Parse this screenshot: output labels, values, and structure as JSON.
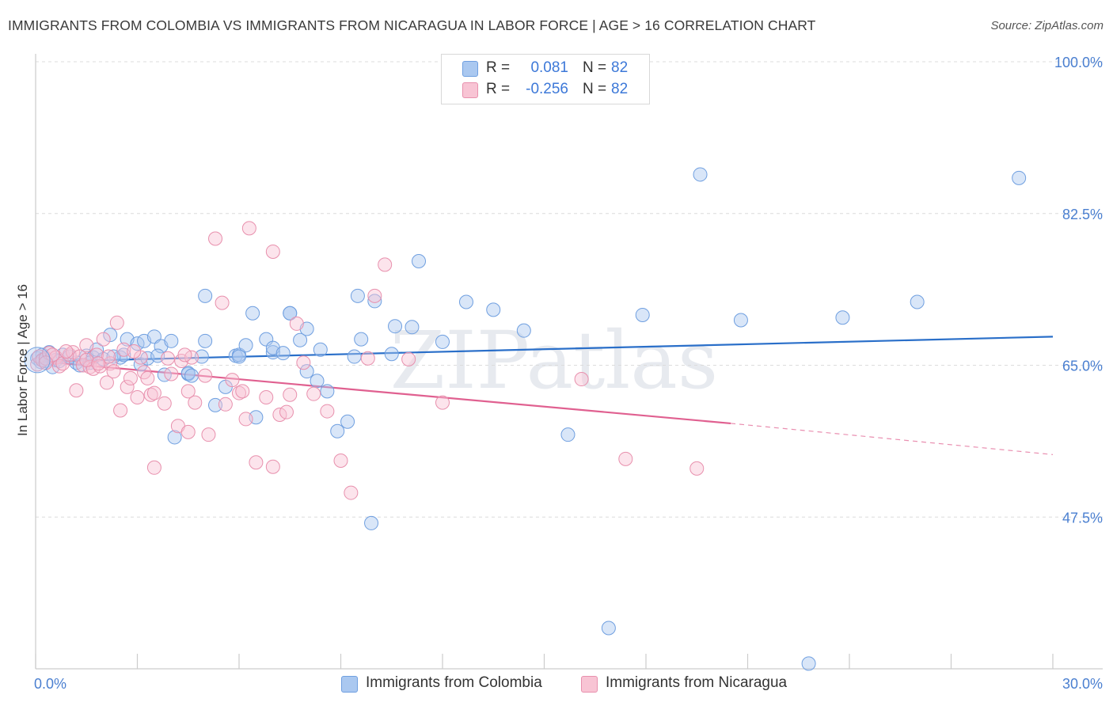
{
  "title": "IMMIGRANTS FROM COLOMBIA VS IMMIGRANTS FROM NICARAGUA IN LABOR FORCE | AGE > 16 CORRELATION CHART",
  "source": "Source: ZipAtlas.com",
  "watermark": "ZIPatlas",
  "legend": {
    "rows": [
      {
        "r_label": "R =",
        "r_value": "0.081",
        "n_label": "N =",
        "n_value": "82",
        "color": "#aac8f0",
        "border": "#6f9fe0"
      },
      {
        "r_label": "R =",
        "r_value": "-0.256",
        "n_label": "N =",
        "n_value": "82",
        "color": "#f8c4d4",
        "border": "#e890ad"
      }
    ]
  },
  "bottom_legend": [
    {
      "label": "Immigrants from Colombia",
      "color": "#aac8f0",
      "border": "#6f9fe0"
    },
    {
      "label": "Immigrants from Nicaragua",
      "color": "#f8c4d4",
      "border": "#e890ad"
    }
  ],
  "chart_data": {
    "type": "scatter",
    "title": "IMMIGRANTS FROM COLOMBIA VS IMMIGRANTS FROM NICARAGUA IN LABOR FORCE | AGE > 16 CORRELATION CHART",
    "xlabel": "",
    "ylabel": "In Labor Force | Age > 16",
    "xlim": [
      0,
      30
    ],
    "ylim": [
      30,
      100
    ],
    "x_tick_labels": [
      "0.0%",
      "30.0%"
    ],
    "y_ticks": [
      47.5,
      65.0,
      82.5,
      100.0
    ],
    "y_tick_labels": [
      "47.5%",
      "65.0%",
      "82.5%",
      "100.0%"
    ],
    "grid": true,
    "series": [
      {
        "name": "Immigrants from Colombia",
        "color": "#6f9fe0",
        "fill": "rgba(170,200,240,0.45)",
        "trend": {
          "x": [
            0,
            30
          ],
          "y": [
            65.4,
            68.3
          ],
          "color": "#2a6fc9"
        },
        "points": [
          [
            0.05,
            65.8
          ],
          [
            0.2,
            66.2
          ],
          [
            0.3,
            65.5
          ],
          [
            0.4,
            66.5
          ],
          [
            0.5,
            64.8
          ],
          [
            0.6,
            65.6
          ],
          [
            0.8,
            66.2
          ],
          [
            1.0,
            66.0
          ],
          [
            1.2,
            65.3
          ],
          [
            1.3,
            65.0
          ],
          [
            1.5,
            66.1
          ],
          [
            1.7,
            65.9
          ],
          [
            1.8,
            66.8
          ],
          [
            2.0,
            65.7
          ],
          [
            2.2,
            68.5
          ],
          [
            2.5,
            65.9
          ],
          [
            2.6,
            66.2
          ],
          [
            2.7,
            68.0
          ],
          [
            3.0,
            67.5
          ],
          [
            3.1,
            65.1
          ],
          [
            3.2,
            67.8
          ],
          [
            3.3,
            65.8
          ],
          [
            3.5,
            68.3
          ],
          [
            3.7,
            67.2
          ],
          [
            3.8,
            63.9
          ],
          [
            4.0,
            67.8
          ],
          [
            4.1,
            56.7
          ],
          [
            4.5,
            64.0
          ],
          [
            4.5,
            64.1
          ],
          [
            4.6,
            63.8
          ],
          [
            5.0,
            67.8
          ],
          [
            5.0,
            73.0
          ],
          [
            5.3,
            60.4
          ],
          [
            5.6,
            62.5
          ],
          [
            5.9,
            66.1
          ],
          [
            6.0,
            66.2
          ],
          [
            6.2,
            67.3
          ],
          [
            6.4,
            71.0
          ],
          [
            6.5,
            59.0
          ],
          [
            6.8,
            68.0
          ],
          [
            7.0,
            66.5
          ],
          [
            7.0,
            67.0
          ],
          [
            7.5,
            71.0
          ],
          [
            7.5,
            71.0
          ],
          [
            7.8,
            67.9
          ],
          [
            8.0,
            69.2
          ],
          [
            8.0,
            64.3
          ],
          [
            8.3,
            63.2
          ],
          [
            8.6,
            62.0
          ],
          [
            8.9,
            57.4
          ],
          [
            9.2,
            58.5
          ],
          [
            9.6,
            68.0
          ],
          [
            9.9,
            46.8
          ],
          [
            9.5,
            73.0
          ],
          [
            10.0,
            72.4
          ],
          [
            10.5,
            66.3
          ],
          [
            10.6,
            69.5
          ],
          [
            11.1,
            69.4
          ],
          [
            11.3,
            77.0
          ],
          [
            12.0,
            67.7
          ],
          [
            12.7,
            72.3
          ],
          [
            13.5,
            71.4
          ],
          [
            14.4,
            69.0
          ],
          [
            15.7,
            57.0
          ],
          [
            16.9,
            34.7
          ],
          [
            17.9,
            70.8
          ],
          [
            19.6,
            87.0
          ],
          [
            20.8,
            70.2
          ],
          [
            23.8,
            70.5
          ],
          [
            26.0,
            72.3
          ],
          [
            29.0,
            86.6
          ],
          [
            22.8,
            30.6
          ],
          [
            9.4,
            66.0
          ],
          [
            6.0,
            66.0
          ],
          [
            2.3,
            66.0
          ],
          [
            1.6,
            65.3
          ],
          [
            0.7,
            65.5
          ],
          [
            4.9,
            66.0
          ],
          [
            3.6,
            66.1
          ],
          [
            7.3,
            66.4
          ],
          [
            8.4,
            66.8
          ],
          [
            0.15,
            65.4
          ]
        ]
      },
      {
        "name": "Immigrants from Nicaragua",
        "color": "#e890ad",
        "fill": "rgba(248,196,212,0.45)",
        "trend": {
          "x": [
            0,
            20.5
          ],
          "y": [
            65.5,
            58.3
          ],
          "color": "#e06090"
        },
        "trend_dashed": {
          "x": [
            20.5,
            30
          ],
          "y": [
            58.3,
            54.7
          ]
        },
        "points": [
          [
            0.05,
            65.1
          ],
          [
            0.1,
            66.0
          ],
          [
            0.2,
            65.6
          ],
          [
            0.3,
            65.8
          ],
          [
            0.4,
            66.4
          ],
          [
            0.6,
            65.9
          ],
          [
            0.7,
            64.9
          ],
          [
            0.8,
            65.2
          ],
          [
            1.0,
            66.2
          ],
          [
            1.1,
            66.5
          ],
          [
            1.2,
            62.1
          ],
          [
            1.3,
            66.0
          ],
          [
            1.4,
            65.0
          ],
          [
            1.5,
            67.3
          ],
          [
            1.6,
            64.8
          ],
          [
            1.7,
            64.6
          ],
          [
            1.8,
            66.2
          ],
          [
            1.9,
            64.9
          ],
          [
            2.0,
            68.0
          ],
          [
            2.1,
            63.0
          ],
          [
            2.2,
            65.2
          ],
          [
            2.3,
            64.3
          ],
          [
            2.4,
            69.9
          ],
          [
            2.5,
            59.8
          ],
          [
            2.7,
            62.5
          ],
          [
            2.8,
            63.5
          ],
          [
            3.0,
            61.3
          ],
          [
            3.2,
            64.2
          ],
          [
            3.3,
            63.5
          ],
          [
            3.4,
            61.6
          ],
          [
            3.5,
            61.8
          ],
          [
            3.5,
            53.2
          ],
          [
            3.8,
            60.6
          ],
          [
            4.0,
            64.0
          ],
          [
            4.2,
            58.0
          ],
          [
            4.3,
            65.5
          ],
          [
            4.5,
            62.0
          ],
          [
            4.5,
            57.3
          ],
          [
            4.7,
            60.7
          ],
          [
            5.0,
            63.8
          ],
          [
            5.1,
            57.0
          ],
          [
            5.3,
            79.6
          ],
          [
            5.5,
            72.2
          ],
          [
            5.6,
            60.5
          ],
          [
            5.8,
            63.3
          ],
          [
            6.0,
            61.8
          ],
          [
            6.2,
            58.8
          ],
          [
            6.3,
            80.8
          ],
          [
            6.5,
            53.8
          ],
          [
            6.8,
            61.3
          ],
          [
            7.0,
            78.1
          ],
          [
            7.0,
            53.3
          ],
          [
            7.2,
            59.3
          ],
          [
            7.4,
            59.6
          ],
          [
            7.5,
            61.6
          ],
          [
            7.7,
            69.8
          ],
          [
            7.9,
            65.3
          ],
          [
            8.2,
            61.7
          ],
          [
            8.6,
            59.7
          ],
          [
            9.0,
            54.0
          ],
          [
            9.3,
            50.3
          ],
          [
            9.8,
            65.8
          ],
          [
            10.0,
            73.0
          ],
          [
            10.3,
            76.6
          ],
          [
            11.0,
            65.7
          ],
          [
            12.0,
            60.7
          ],
          [
            16.1,
            63.4
          ],
          [
            17.4,
            54.2
          ],
          [
            19.5,
            53.1
          ],
          [
            0.5,
            66.2
          ],
          [
            0.9,
            66.6
          ],
          [
            2.6,
            66.8
          ],
          [
            3.1,
            65.9
          ],
          [
            4.6,
            65.9
          ],
          [
            1.5,
            65.6
          ],
          [
            2.9,
            66.6
          ],
          [
            0.3,
            65.3
          ],
          [
            4.4,
            66.2
          ],
          [
            6.1,
            62.0
          ],
          [
            3.9,
            65.8
          ],
          [
            2.15,
            66.0
          ],
          [
            1.85,
            65.2
          ]
        ]
      }
    ]
  }
}
